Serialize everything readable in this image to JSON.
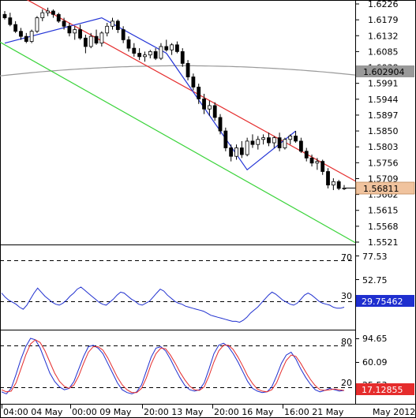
{
  "chart_data": [
    {
      "type": "candlestick",
      "instrument_panel": "price",
      "ylim": [
        1.5521,
        1.6226
      ],
      "y_ticks": [
        "1.6226",
        "1.6179",
        "1.6132",
        "1.6085",
        "1.6038",
        "1.5991",
        "1.5944",
        "1.5897",
        "1.5850",
        "1.5803",
        "1.5756",
        "1.5709",
        "1.5662",
        "1.5615",
        "1.5568",
        "1.5521"
      ],
      "current_price_label": "1.56811",
      "current_price_value": 1.56811,
      "moving_average_label": "1.602904",
      "moving_average_value": 1.602904,
      "candles": [
        [
          1.6195,
          1.6205,
          1.618,
          1.6185
        ],
        [
          1.6185,
          1.62,
          1.616,
          1.6165
        ],
        [
          1.6165,
          1.6175,
          1.614,
          1.6145
        ],
        [
          1.6145,
          1.6155,
          1.612,
          1.613
        ],
        [
          1.613,
          1.614,
          1.611,
          1.6115
        ],
        [
          1.6115,
          1.615,
          1.611,
          1.6145
        ],
        [
          1.6145,
          1.619,
          1.614,
          1.6185
        ],
        [
          1.6185,
          1.621,
          1.6175,
          1.62
        ],
        [
          1.62,
          1.6215,
          1.619,
          1.6205
        ],
        [
          1.6205,
          1.621,
          1.6185,
          1.6195
        ],
        [
          1.6195,
          1.62,
          1.617,
          1.6175
        ],
        [
          1.6175,
          1.6185,
          1.615,
          1.616
        ],
        [
          1.616,
          1.617,
          1.613,
          1.614
        ],
        [
          1.614,
          1.616,
          1.612,
          1.615
        ],
        [
          1.615,
          1.6165,
          1.612,
          1.6125
        ],
        [
          1.6125,
          1.6135,
          1.608,
          1.61
        ],
        [
          1.61,
          1.614,
          1.6095,
          1.613
        ],
        [
          1.613,
          1.615,
          1.6105,
          1.611
        ],
        [
          1.611,
          1.6145,
          1.61,
          1.614
        ],
        [
          1.614,
          1.617,
          1.613,
          1.616
        ],
        [
          1.616,
          1.6185,
          1.615,
          1.6175
        ],
        [
          1.6175,
          1.618,
          1.614,
          1.615
        ],
        [
          1.615,
          1.616,
          1.611,
          1.612
        ],
        [
          1.612,
          1.613,
          1.6085,
          1.6095
        ],
        [
          1.6095,
          1.611,
          1.607,
          1.608
        ],
        [
          1.608,
          1.6095,
          1.606,
          1.607
        ],
        [
          1.607,
          1.6085,
          1.6055,
          1.6075
        ],
        [
          1.6075,
          1.609,
          1.6065,
          1.6085
        ],
        [
          1.6085,
          1.6095,
          1.606,
          1.6065
        ],
        [
          1.6065,
          1.611,
          1.606,
          1.61
        ],
        [
          1.61,
          1.612,
          1.6085,
          1.609
        ],
        [
          1.609,
          1.611,
          1.6075,
          1.6105
        ],
        [
          1.6105,
          1.6115,
          1.608,
          1.6085
        ],
        [
          1.6085,
          1.6095,
          1.604,
          1.605
        ],
        [
          1.605,
          1.606,
          1.6,
          1.601
        ],
        [
          1.601,
          1.602,
          1.597,
          1.598
        ],
        [
          1.598,
          1.599,
          1.593,
          1.5945
        ],
        [
          1.5945,
          1.596,
          1.59,
          1.5915
        ],
        [
          1.5915,
          1.594,
          1.5895,
          1.5925
        ],
        [
          1.5925,
          1.5935,
          1.588,
          1.589
        ],
        [
          1.589,
          1.59,
          1.584,
          1.585
        ],
        [
          1.585,
          1.586,
          1.579,
          1.58
        ],
        [
          1.58,
          1.581,
          1.576,
          1.5775
        ],
        [
          1.5775,
          1.581,
          1.5765,
          1.58
        ],
        [
          1.58,
          1.582,
          1.577,
          1.578
        ],
        [
          1.578,
          1.583,
          1.5775,
          1.582
        ],
        [
          1.582,
          1.584,
          1.58,
          1.581
        ],
        [
          1.581,
          1.5835,
          1.5795,
          1.5825
        ],
        [
          1.5825,
          1.584,
          1.581,
          1.583
        ],
        [
          1.583,
          1.5845,
          1.5805,
          1.5815
        ],
        [
          1.5815,
          1.5835,
          1.58,
          1.583
        ],
        [
          1.583,
          1.5845,
          1.579,
          1.58
        ],
        [
          1.58,
          1.583,
          1.5795,
          1.5825
        ],
        [
          1.5825,
          1.584,
          1.581,
          1.5835
        ],
        [
          1.5835,
          1.585,
          1.5815,
          1.582
        ],
        [
          1.582,
          1.583,
          1.5785,
          1.579
        ],
        [
          1.579,
          1.58,
          1.576,
          1.577
        ],
        [
          1.577,
          1.578,
          1.5745,
          1.5755
        ],
        [
          1.5755,
          1.577,
          1.5735,
          1.576
        ],
        [
          1.576,
          1.5765,
          1.572,
          1.573
        ],
        [
          1.573,
          1.574,
          1.568,
          1.569
        ],
        [
          1.569,
          1.571,
          1.5675,
          1.57
        ],
        [
          1.57,
          1.5705,
          1.5675,
          1.568
        ],
        [
          1.568,
          1.569,
          1.5675,
          1.5681
        ]
      ],
      "trend_lines": [
        {
          "name": "upper channel",
          "color": "#e52c2c",
          "points": [
            [
              0,
              1.6275
            ],
            [
              63,
              1.572
            ]
          ]
        },
        {
          "name": "lower channel",
          "color": "#39d339",
          "points": [
            [
              0,
              1.6105
            ],
            [
              63,
              1.5538
            ]
          ]
        },
        {
          "name": "zigzag",
          "color": "#2233d6",
          "points": [
            [
              0,
              1.611
            ],
            [
              18,
              1.6185
            ],
            [
              30,
              1.608
            ],
            [
              45,
              1.5735
            ],
            [
              54,
              1.585
            ]
          ]
        }
      ]
    },
    {
      "type": "line",
      "instrument_panel": "oscillator",
      "ylim": [
        10,
        90
      ],
      "y_ticks": [
        "77.53",
        "52.75",
        "30.65"
      ],
      "levels": [
        {
          "label": "70",
          "value": 70
        },
        {
          "label": "30",
          "value": 30
        }
      ],
      "current_value_label": "29.75462",
      "series": [
        {
          "color": "#1f2fcf",
          "values": [
            44,
            40,
            37,
            35,
            33,
            30,
            28,
            32,
            38,
            44,
            49,
            45,
            41,
            38,
            35,
            33,
            32,
            34,
            37,
            41,
            44,
            48,
            50,
            47,
            44,
            41,
            38,
            35,
            33,
            32,
            35,
            38,
            42,
            45,
            44,
            41,
            38,
            36,
            33,
            32,
            34,
            36,
            40,
            44,
            48,
            46,
            42,
            39,
            36,
            34,
            33,
            31,
            30,
            29,
            28,
            27,
            26,
            24,
            22,
            21,
            20,
            19,
            18,
            17,
            16,
            16,
            15,
            17,
            20,
            24,
            27,
            30,
            34,
            38,
            42,
            45,
            43,
            40,
            37,
            35,
            33,
            32,
            34,
            38,
            42,
            44,
            42,
            39,
            36,
            34,
            33,
            32,
            30,
            29,
            29,
            30
          ]
        }
      ]
    },
    {
      "type": "line",
      "instrument_panel": "stochastic",
      "ylim": [
        0,
        100
      ],
      "y_ticks": [
        "94.65",
        "60.09",
        "25.53"
      ],
      "levels": [
        {
          "label": "80",
          "value": 80
        },
        {
          "label": "20",
          "value": 20
        }
      ],
      "current_value_label": "17.12855",
      "series": [
        {
          "color": "#1f2fcf",
          "values": [
            15,
            12,
            20,
            40,
            62,
            80,
            92,
            90,
            78,
            60,
            42,
            30,
            22,
            18,
            20,
            30,
            48,
            66,
            80,
            82,
            78,
            70,
            56,
            42,
            28,
            18,
            14,
            12,
            15,
            25,
            45,
            65,
            78,
            80,
            74,
            62,
            48,
            35,
            24,
            18,
            16,
            18,
            28,
            48,
            70,
            82,
            85,
            80,
            70,
            58,
            44,
            30,
            20,
            16,
            14,
            15,
            22,
            38,
            56,
            68,
            72,
            62,
            48,
            36,
            26,
            18,
            15,
            17,
            20,
            18,
            16,
            17
          ]
        },
        {
          "color": "#e52c2c",
          "values": [
            18,
            15,
            16,
            28,
            48,
            68,
            84,
            90,
            86,
            74,
            58,
            42,
            30,
            23,
            20,
            25,
            38,
            56,
            72,
            80,
            80,
            75,
            64,
            50,
            36,
            25,
            18,
            14,
            14,
            20,
            35,
            55,
            70,
            78,
            77,
            68,
            56,
            43,
            32,
            23,
            18,
            17,
            22,
            38,
            58,
            74,
            82,
            82,
            76,
            65,
            52,
            38,
            27,
            19,
            16,
            15,
            18,
            28,
            45,
            60,
            68,
            66,
            56,
            44,
            33,
            24,
            18,
            17,
            18,
            19,
            18,
            17
          ]
        }
      ]
    }
  ],
  "x_labels": [
    "04:00 04 May",
    "00:00 09 May",
    "20:00 13 May",
    "20:00 16 May",
    "16:00 21 May",
    "May 2012"
  ]
}
